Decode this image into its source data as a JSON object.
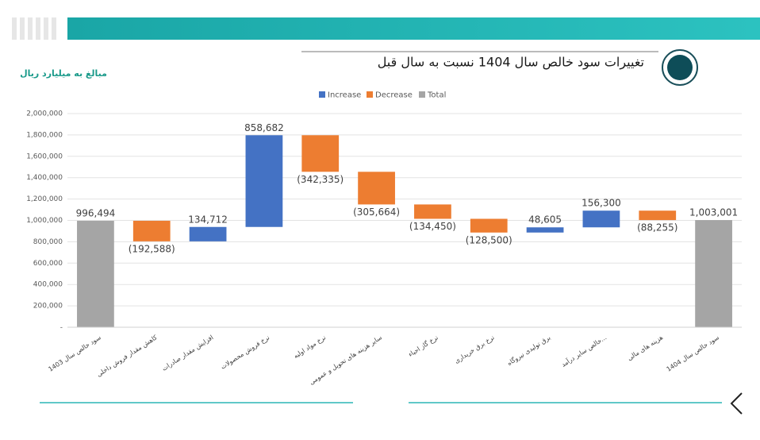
{
  "chart_data": {
    "type": "waterfall",
    "title": "تغییرات سود خالص سال 1404 نسبت به سال قبل",
    "subtitle": "مبالغ به میلیارد ریال",
    "legend": [
      {
        "name": "Increase",
        "color": "#4472c4"
      },
      {
        "name": "Decrease",
        "color": "#ed7d31"
      },
      {
        "name": "Total",
        "color": "#a5a5a5"
      }
    ],
    "categories": [
      "سود خالص سال 1403",
      "کاهش مقدار فروش داخلی",
      "افزایش مقدار صادرات",
      "نرخ فروش محصولات",
      "نرخ مواد اولیه",
      "سایر هزینه های تحویل و عمومی",
      "نرخ گاز احیاء",
      "نرخ برق خریداری",
      "برق تولیدی نیروگاه",
      "خالص سایر درآمد...",
      "هزینه های مالی",
      "سود خالص سال 1404"
    ],
    "kinds": [
      "Total",
      "Decrease",
      "Increase",
      "Increase",
      "Decrease",
      "Decrease",
      "Decrease",
      "Decrease",
      "Increase",
      "Increase",
      "Decrease",
      "Total"
    ],
    "values": [
      996494,
      -192588,
      134712,
      858682,
      -342335,
      -305664,
      -134450,
      -128500,
      48605,
      156300,
      -88255,
      1003001
    ],
    "value_labels": [
      "996,494",
      "(192,588)",
      "134,712",
      "858,682",
      "(342,335)",
      "(305,664)",
      "(134,450)",
      "(128,500)",
      "48,605",
      "156,300",
      "(88,255)",
      "1,003,001"
    ],
    "ylim": [
      0,
      2000000
    ],
    "yticks": [
      {
        "value": 0,
        "label": "-"
      },
      {
        "value": 200000,
        "label": "200,000"
      },
      {
        "value": 400000,
        "label": "400,000"
      },
      {
        "value": 600000,
        "label": "600,000"
      },
      {
        "value": 800000,
        "label": "800,000"
      },
      {
        "value": 1000000,
        "label": "1,000,000"
      },
      {
        "value": 1200000,
        "label": "1,200,000"
      },
      {
        "value": 1400000,
        "label": "1,400,000"
      },
      {
        "value": 1600000,
        "label": "1,600,000"
      },
      {
        "value": 1800000,
        "label": "1,800,000"
      },
      {
        "value": 2000000,
        "label": "2,000,000"
      }
    ],
    "grid": true
  }
}
